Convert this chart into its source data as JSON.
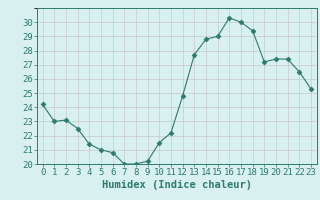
{
  "x": [
    0,
    1,
    2,
    3,
    4,
    5,
    6,
    7,
    8,
    9,
    10,
    11,
    12,
    13,
    14,
    15,
    16,
    17,
    18,
    19,
    20,
    21,
    22,
    23
  ],
  "y": [
    24.2,
    23.0,
    23.1,
    22.5,
    21.4,
    21.0,
    20.8,
    20.0,
    20.0,
    20.2,
    21.5,
    22.2,
    24.8,
    27.7,
    28.8,
    29.0,
    30.3,
    30.0,
    29.4,
    27.2,
    27.4,
    27.4,
    26.5,
    25.3
  ],
  "line_color": "#2d7a6e",
  "marker": "D",
  "marker_size": 2.5,
  "bg_color": "#d8f0f0",
  "grid_major_color": "#c8c8c8",
  "grid_minor_color": "#e0e8e8",
  "xlabel": "Humidex (Indice chaleur)",
  "ylim": [
    20,
    31
  ],
  "xlim": [
    -0.5,
    23.5
  ],
  "yticks": [
    20,
    21,
    22,
    23,
    24,
    25,
    26,
    27,
    28,
    29,
    30
  ],
  "xticks": [
    0,
    1,
    2,
    3,
    4,
    5,
    6,
    7,
    8,
    9,
    10,
    11,
    12,
    13,
    14,
    15,
    16,
    17,
    18,
    19,
    20,
    21,
    22,
    23
  ],
  "xlabel_fontsize": 7.5,
  "tick_fontsize": 6.5,
  "tick_color": "#2d7a6e",
  "label_color": "#2d7a6e",
  "spine_color": "#2d7a6e"
}
